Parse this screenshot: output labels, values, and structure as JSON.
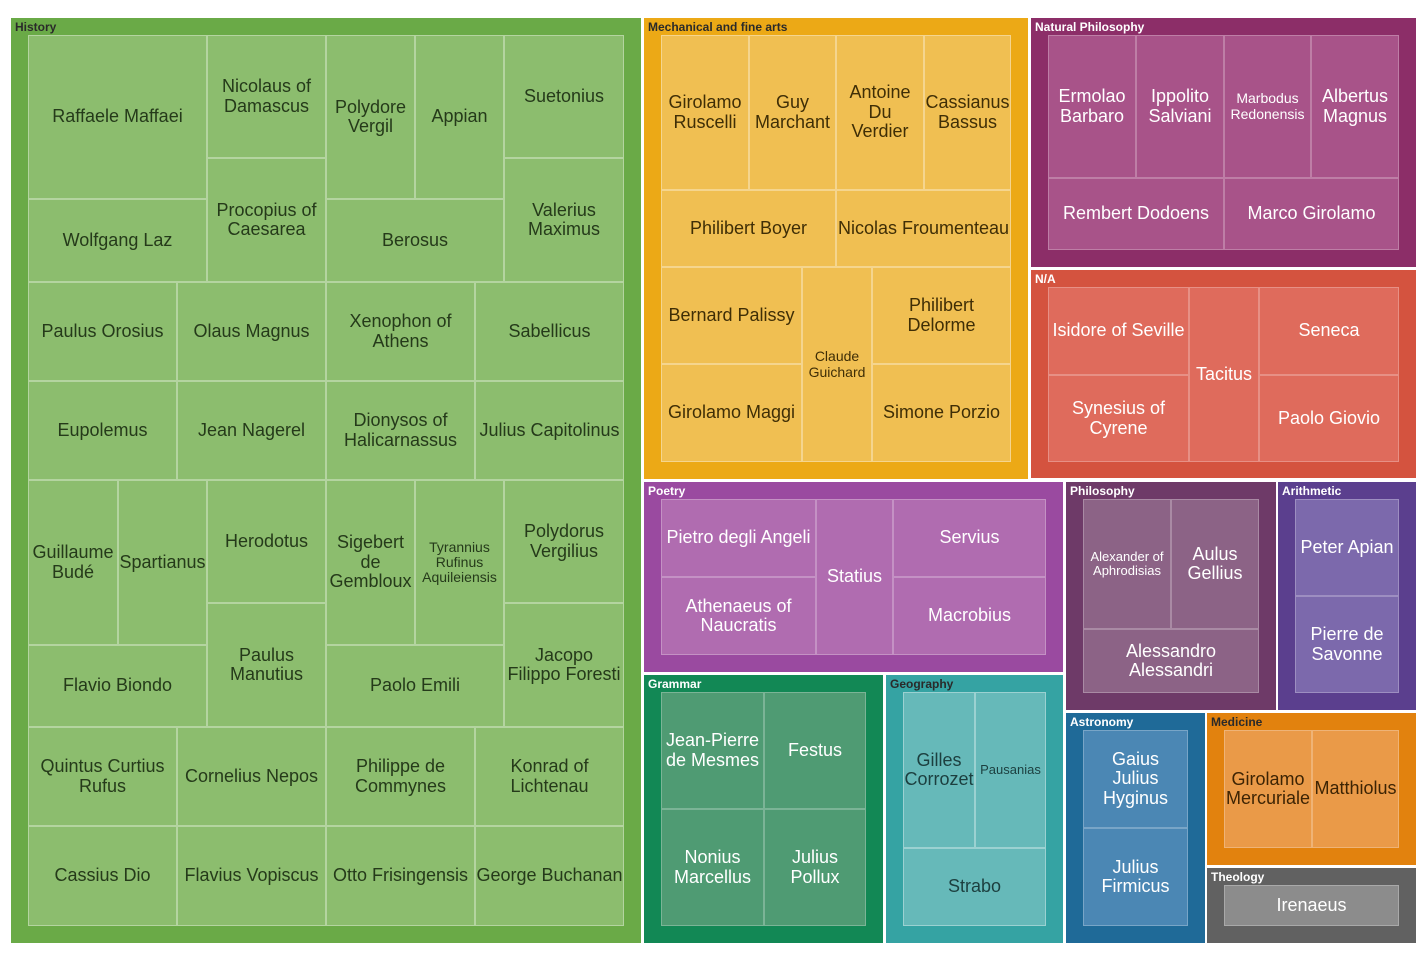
{
  "chart_data": {
    "type": "treemap",
    "title": "",
    "groups": [
      {
        "name": "History",
        "color": "#6aaa47",
        "cell_color": "#8cbd6e",
        "text_color": "#253a1a",
        "items": [
          "Raffaele Maffaei",
          "Wolfgang Laz",
          "Nicolaus of Damascus",
          "Procopius of Caesarea",
          "Polydore Vergil",
          "Appian",
          "Berosus",
          "Suetonius",
          "Valerius Maximus",
          "Paulus Orosius",
          "Olaus Magnus",
          "Xenophon of Athens",
          "Sabellicus",
          "Eupolemus",
          "Jean Nagerel",
          "Dionysos of Halicarnassus",
          "Julius Capitolinus",
          "Guillaume Budé",
          "Spartianus",
          "Flavio Biondo",
          "Herodotus",
          "Paulus Manutius",
          "Sigebert de Gembloux",
          "Tyrannius Rufinus Aquileiensis",
          "Paolo Emili",
          "Polydorus Vergilius",
          "Jacopo Filippo Foresti",
          "Quintus Curtius Rufus",
          "Cornelius Nepos",
          "Philippe de Commynes",
          "Konrad of Lichtenau",
          "Cassius Dio",
          "Flavius Vopiscus",
          "Otto Frisingensis",
          "George Buchanan"
        ]
      },
      {
        "name": "Mechanical and fine arts",
        "color": "#eca916",
        "cell_color": "#f0bf52",
        "text_color": "#3f2e06",
        "items": [
          "Girolamo Ruscelli",
          "Guy Marchant",
          "Antoine Du Verdier",
          "Cassianus Bassus",
          "Philibert Boyer",
          "Nicolas Froumenteau",
          "Bernard Palissy",
          "Girolamo Maggi",
          "Claude Guichard",
          "Philibert Delorme",
          "Simone Porzio"
        ]
      },
      {
        "name": "Natural Philosophy",
        "color": "#8c2e68",
        "cell_color": "#a85389",
        "text_color": "#ffffff",
        "items": [
          "Ermolao Barbaro",
          "Ippolito Salviani",
          "Marbodus Redonensis",
          "Albertus Magnus",
          "Rembert Dodoens",
          "Marco Girolamo"
        ]
      },
      {
        "name": "N/A",
        "color": "#d4533f",
        "cell_color": "#df6b5c",
        "text_color": "#ffffff",
        "items": [
          "Isidore of Seville",
          "Synesius of Cyrene",
          "Tacitus",
          "Seneca",
          "Paolo Giovio"
        ]
      },
      {
        "name": "Poetry",
        "color": "#9a4aa0",
        "cell_color": "#b06cb0",
        "text_color": "#ffffff",
        "items": [
          "Pietro degli Angeli",
          "Athenaeus of Naucratis",
          "Statius",
          "Servius",
          "Macrobius"
        ]
      },
      {
        "name": "Philosophy",
        "color": "#6e3a68",
        "cell_color": "#8c6386",
        "text_color": "#ffffff",
        "items": [
          "Alexander of Aphrodisias",
          "Aulus Gellius",
          "Alessandro Alessandri"
        ]
      },
      {
        "name": "Arithmetic",
        "color": "#5b3f8e",
        "cell_color": "#7c69ac",
        "text_color": "#ffffff",
        "items": [
          "Peter Apian",
          "Pierre de Savonne"
        ]
      },
      {
        "name": "Grammar",
        "color": "#128855",
        "cell_color": "#4f9b73",
        "text_color": "#ffffff",
        "items": [
          "Jean-Pierre de Mesmes",
          "Festus",
          "Nonius Marcellus",
          "Julius Pollux"
        ]
      },
      {
        "name": "Geography",
        "color": "#35a3a3",
        "cell_color": "#66b9b9",
        "text_color": "#1c3f3f",
        "items": [
          "Gilles Corrozet",
          "Pausanias",
          "Strabo"
        ]
      },
      {
        "name": "Astronomy",
        "color": "#1f6a98",
        "cell_color": "#4b87b4",
        "text_color": "#ffffff",
        "items": [
          "Gaius Julius Hyginus",
          "Julius Firmicus"
        ]
      },
      {
        "name": "Medicine",
        "color": "#e2820e",
        "cell_color": "#ea9a48",
        "text_color": "#3d2404",
        "items": [
          "Girolamo Mercuriale",
          "Matthiolus"
        ]
      },
      {
        "name": "Theology",
        "color": "#616161",
        "cell_color": "#8c8c8c",
        "text_color": "#ffffff",
        "items": [
          "Irenaeus"
        ]
      }
    ]
  }
}
